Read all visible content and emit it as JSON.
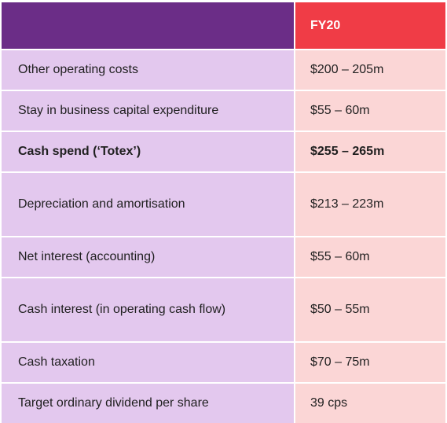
{
  "header": {
    "label": "",
    "value": "FY20"
  },
  "rows": [
    {
      "label": "Other operating costs",
      "value": "$200 – 205m"
    },
    {
      "label": "Stay in business capital expenditure",
      "value": "$55 –  60m"
    },
    {
      "label": "Cash spend (‘Totex’)",
      "value": "$255 – 265m"
    },
    {
      "label": "Depreciation and amortisation",
      "value": "$213 – 223m"
    },
    {
      "label": "Net interest (accounting)",
      "value": "$55 – 60m"
    },
    {
      "label": "Cash interest (in operating cash flow)",
      "value": "$50 –  55m"
    },
    {
      "label": "Cash taxation",
      "value": "$70 –  75m"
    },
    {
      "label": "Target ordinary dividend per share",
      "value": "39 cps"
    }
  ],
  "colors": {
    "header_left": "#6b2d87",
    "header_right": "#f03c46",
    "label_bg": "#e3c8ee",
    "value_bg": "#fbd6d6"
  }
}
